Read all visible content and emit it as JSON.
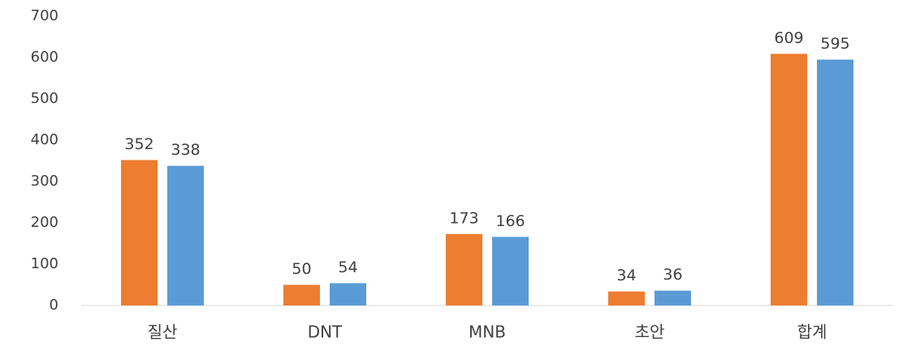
{
  "chart_data": {
    "type": "bar",
    "categories": [
      "질산",
      "DNT",
      "MNB",
      "초안",
      "합계"
    ],
    "series": [
      {
        "color": "#ed7d31",
        "values": [
          352,
          50,
          173,
          34,
          609
        ]
      },
      {
        "color": "#5b9bd5",
        "values": [
          338,
          54,
          166,
          36,
          595
        ]
      }
    ],
    "ylim": [
      0,
      700
    ],
    "yticks": [
      0,
      100,
      200,
      300,
      400,
      500,
      600,
      700
    ],
    "grid": false
  }
}
